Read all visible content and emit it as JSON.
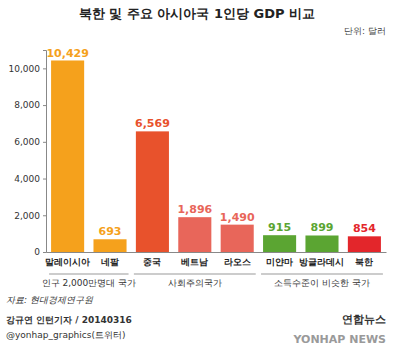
{
  "chart_data": {
    "type": "bar",
    "title": "북한 및 주요 아시아국 1인당 GDP 비교",
    "subtitle": "단위: 달러",
    "categories": [
      "말레이시아",
      "네팔",
      "중국",
      "베트남",
      "라오스",
      "미얀마",
      "방글라데시",
      "북한"
    ],
    "values": [
      10429,
      693,
      6569,
      1896,
      1490,
      915,
      899,
      854
    ],
    "value_labels": [
      "10,429",
      "693",
      "6,569",
      "1,896",
      "1,490",
      "915",
      "899",
      "854"
    ],
    "colors": [
      "#f5a11c",
      "#f5a11c",
      "#e8522c",
      "#e8665a",
      "#e8665a",
      "#5ba532",
      "#5ba532",
      "#e3262b"
    ],
    "data_labels": true,
    "grid": false,
    "ylim": [
      0,
      11000
    ],
    "yticks": [
      0,
      {
        "value": 2000,
        "label": "2,000"
      },
      {
        "value": 4000,
        "label": "4,000"
      },
      {
        "value": 6000,
        "label": "6,000"
      },
      {
        "value": 8000,
        "label": "8,000"
      },
      {
        "value": 10000,
        "label": "10,000"
      }
    ],
    "groups": [
      {
        "name": "인구 2,000만명대 국가",
        "categories": [
          "말레이시아",
          "네팔"
        ]
      },
      {
        "name": "사회주의국가",
        "categories": [
          "중국",
          "베트남",
          "라오스"
        ]
      },
      {
        "name": "소득수준이 비슷한 국가",
        "categories": [
          "미얀마",
          "방글라데시",
          "북한"
        ]
      }
    ],
    "source": "자료: 현대경제연구원",
    "annotations": [
      "강규연 인턴기자 / 20140316",
      "@yonhap_graphics(트위터)",
      "연합뉴스",
      "YONHAP NEWS"
    ]
  }
}
